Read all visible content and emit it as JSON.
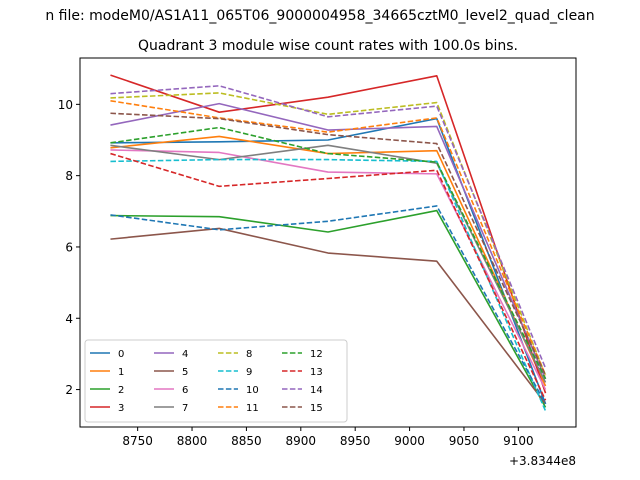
{
  "figure": {
    "suptitle": "n file: modeM0/AS1A11_065T06_9000004958_34665cztM0_level2_quad_clean",
    "title": "Quadrant 3 module wise count rates with 100.0s bins.",
    "offset_label": "+3.8344e8"
  },
  "chart_data": {
    "type": "line",
    "title": "Quadrant 3 module wise count rates with 100.0s bins.",
    "xlabel": "",
    "ylabel": "",
    "x_offset": 383440000,
    "x": [
      8725,
      8825,
      8925,
      9025,
      9125
    ],
    "xlim": [
      8697,
      9153
    ],
    "ylim": [
      0.95,
      11.3
    ],
    "xticks": [
      8750,
      8800,
      8850,
      8900,
      8950,
      9000,
      9050,
      9100
    ],
    "yticks": [
      2,
      4,
      6,
      8,
      10
    ],
    "grid": false,
    "legend": {
      "placement": "lower-left",
      "columns": 4
    },
    "series": [
      {
        "name": "0",
        "color": "#1f77b4",
        "dash": "solid",
        "values": [
          8.92,
          8.95,
          9.0,
          9.6,
          1.6
        ]
      },
      {
        "name": "1",
        "color": "#ff7f0e",
        "dash": "solid",
        "values": [
          8.78,
          9.1,
          8.62,
          8.7,
          2.1
        ]
      },
      {
        "name": "2",
        "color": "#2ca02c",
        "dash": "solid",
        "values": [
          6.88,
          6.85,
          6.42,
          7.02,
          1.5
        ]
      },
      {
        "name": "3",
        "color": "#d62728",
        "dash": "solid",
        "values": [
          10.82,
          9.78,
          10.2,
          10.8,
          1.9
        ]
      },
      {
        "name": "4",
        "color": "#9467bd",
        "dash": "solid",
        "values": [
          9.42,
          10.02,
          9.28,
          9.38,
          2.3
        ]
      },
      {
        "name": "5",
        "color": "#8c564b",
        "dash": "solid",
        "values": [
          6.22,
          6.52,
          5.83,
          5.6,
          1.6
        ]
      },
      {
        "name": "6",
        "color": "#e377c2",
        "dash": "solid",
        "values": [
          8.72,
          8.65,
          8.1,
          8.05,
          2.0
        ]
      },
      {
        "name": "7",
        "color": "#7f7f7f",
        "dash": "solid",
        "values": [
          8.85,
          8.45,
          8.85,
          8.35,
          2.2
        ]
      },
      {
        "name": "8",
        "color": "#bcbd22",
        "dash": "dashed",
        "values": [
          10.18,
          10.32,
          9.72,
          10.05,
          2.4
        ]
      },
      {
        "name": "9",
        "color": "#17becf",
        "dash": "dashed",
        "values": [
          8.4,
          8.45,
          8.45,
          8.4,
          1.4
        ]
      },
      {
        "name": "10",
        "color": "#1f77b4",
        "dash": "dashed",
        "values": [
          6.9,
          6.48,
          6.72,
          7.15,
          1.6
        ]
      },
      {
        "name": "11",
        "color": "#ff7f0e",
        "dash": "dashed",
        "values": [
          10.1,
          9.62,
          9.22,
          9.62,
          2.4
        ]
      },
      {
        "name": "12",
        "color": "#2ca02c",
        "dash": "dashed",
        "values": [
          8.92,
          9.35,
          8.62,
          8.38,
          2.3
        ]
      },
      {
        "name": "13",
        "color": "#d62728",
        "dash": "dashed",
        "values": [
          8.62,
          7.7,
          7.92,
          8.15,
          1.7
        ]
      },
      {
        "name": "14",
        "color": "#9467bd",
        "dash": "dashed",
        "values": [
          10.3,
          10.52,
          9.65,
          9.95,
          2.6
        ]
      },
      {
        "name": "15",
        "color": "#8c564b",
        "dash": "dashed",
        "values": [
          9.75,
          9.6,
          9.15,
          8.9,
          2.4
        ]
      }
    ]
  }
}
